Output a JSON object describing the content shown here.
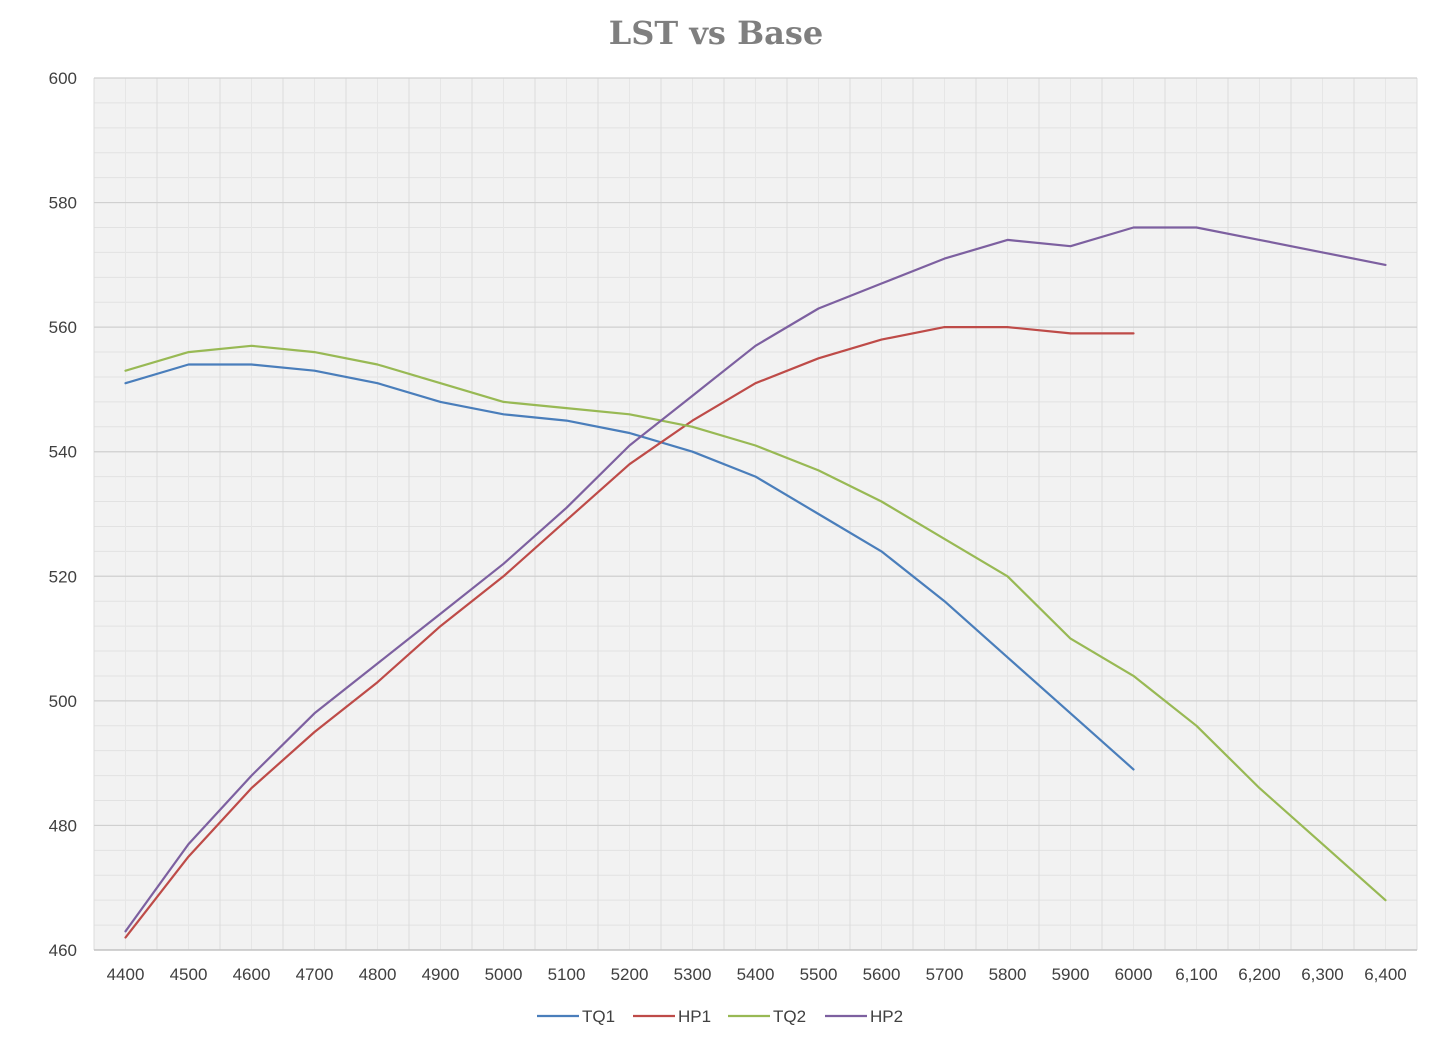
{
  "chart_data": {
    "type": "line",
    "title": "LST vs Base",
    "xlabel": "",
    "ylabel": "",
    "categories": [
      "4400",
      "4500",
      "4600",
      "4700",
      "4800",
      "4900",
      "5000",
      "5100",
      "5200",
      "5300",
      "5400",
      "5500",
      "5600",
      "5700",
      "5800",
      "5900",
      "6000",
      "6,100",
      "6,200",
      "6,300",
      "6,400"
    ],
    "ylim": [
      460,
      600
    ],
    "yticks": [
      460,
      480,
      500,
      520,
      540,
      560,
      580,
      600
    ],
    "grid": true,
    "legend_position": "bottom",
    "series": [
      {
        "name": "TQ1",
        "color": "#4a7ebb",
        "values": [
          551,
          554,
          554,
          553,
          551,
          548,
          546,
          545,
          543,
          540,
          536,
          530,
          524,
          516,
          507,
          498,
          489,
          null,
          null,
          null,
          null
        ]
      },
      {
        "name": "HP1",
        "color": "#be4b48",
        "values": [
          462,
          475,
          486,
          495,
          503,
          512,
          520,
          529,
          538,
          545,
          551,
          555,
          558,
          560,
          560,
          559,
          559,
          null,
          null,
          null,
          null
        ]
      },
      {
        "name": "TQ2",
        "color": "#98b954",
        "values": [
          553,
          556,
          557,
          556,
          554,
          551,
          548,
          547,
          546,
          544,
          541,
          537,
          532,
          526,
          520,
          510,
          504,
          496,
          486,
          477,
          468
        ]
      },
      {
        "name": "HP2",
        "color": "#7d60a0",
        "values": [
          463,
          477,
          488,
          498,
          506,
          514,
          522,
          531,
          541,
          549,
          557,
          563,
          567,
          571,
          574,
          573,
          576,
          576,
          574,
          572,
          570
        ]
      }
    ]
  }
}
